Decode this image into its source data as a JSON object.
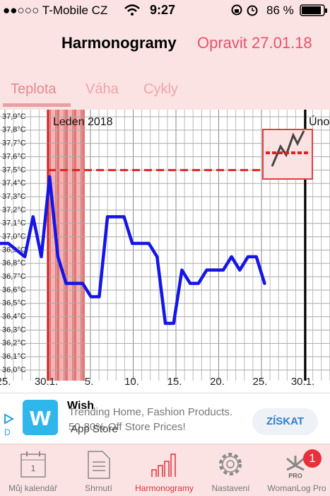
{
  "status": {
    "carrier": "T-Mobile CZ",
    "time": "9:27",
    "battery": "86 %"
  },
  "nav": {
    "title": "Harmonogramy",
    "action": "Opravit 27.01.18"
  },
  "tabs": [
    "Teplota",
    "Váha",
    "Cykly"
  ],
  "chart": {
    "type": "line",
    "month_label": "Leden 2018",
    "next_month_label": "Úno",
    "yticks": [
      {
        "value": 37.9,
        "label": "37,9°C"
      },
      {
        "value": 37.8,
        "label": "37,8°C"
      },
      {
        "value": 37.7,
        "label": "37,7°C"
      },
      {
        "value": 37.6,
        "label": "37,6°C"
      },
      {
        "value": 37.5,
        "label": "37,5°C"
      },
      {
        "value": 37.4,
        "label": "37,4°C"
      },
      {
        "value": 37.3,
        "label": "37,3°C"
      },
      {
        "value": 37.2,
        "label": "37,2°C"
      },
      {
        "value": 37.1,
        "label": "37,1°C"
      },
      {
        "value": 37.0,
        "label": "37,0°C"
      },
      {
        "value": 36.9,
        "label": "36,9°C"
      },
      {
        "value": 36.8,
        "label": "36,8°C"
      },
      {
        "value": 36.7,
        "label": "36,7°C"
      },
      {
        "value": 36.6,
        "label": "36,6°C"
      },
      {
        "value": 36.5,
        "label": "36,5°C"
      },
      {
        "value": 36.4,
        "label": "36,4°C"
      },
      {
        "value": 36.3,
        "label": "36,3°C"
      },
      {
        "value": 36.2,
        "label": "36,2°C"
      },
      {
        "value": 36.1,
        "label": "36,1°C"
      },
      {
        "value": 36.0,
        "label": "36,0°C"
      }
    ],
    "x_labels": [
      "25.",
      "30.1.",
      "5.",
      "10.",
      "15.",
      "20.",
      "25.",
      "30.1."
    ],
    "color": "#1515e6",
    "coverline": 37.5,
    "coverline_color": "#e02020",
    "values": [
      36.95,
      36.95,
      36.9,
      36.85,
      37.15,
      36.85,
      37.45,
      36.85,
      36.65,
      36.65,
      36.65,
      36.55,
      36.55,
      37.15,
      37.15,
      37.15,
      36.95,
      36.95,
      36.95,
      36.85,
      36.35,
      36.35,
      36.75,
      36.65,
      36.65,
      36.75,
      36.75,
      36.75,
      36.85,
      36.75,
      36.85,
      36.85,
      36.65
    ]
  },
  "ad": {
    "title": "Wish",
    "line1": "Trending Home, Fashion Products.",
    "line2": "50-80% Off Store Prices!",
    "store": "App Store",
    "button": "ZÍSKAT"
  },
  "tabbar": {
    "items": [
      "Můj kalendář",
      "Shrnutí",
      "Harmonogramy",
      "Nastavení",
      "WomanLog Pro"
    ],
    "badge": "1",
    "calendar_day": "1",
    "pro": "PRO"
  }
}
